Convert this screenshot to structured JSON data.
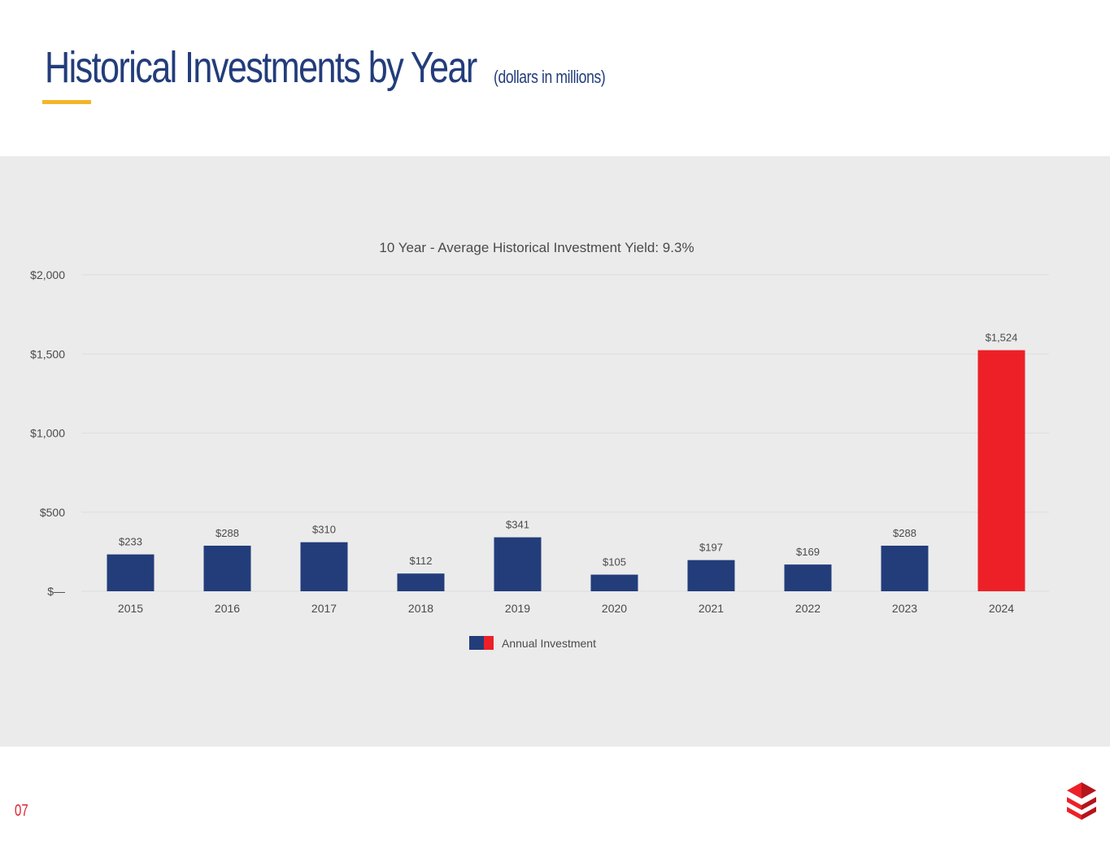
{
  "page": {
    "title": "Historical Investments by Year",
    "subtitle": "(dollars in millions)",
    "page_number": "07",
    "logo_icon": "stacked-chevron-logo-icon"
  },
  "colors": {
    "primary": "#233d7b",
    "highlight": "#ed2027",
    "accent": "#f4b52b",
    "panel": "#ebebeb",
    "text": "#4a4a4a"
  },
  "chart_data": {
    "type": "bar",
    "title": "10 Year - Average Historical Investment Yield: 9.3%",
    "categories": [
      "2015",
      "2016",
      "2017",
      "2018",
      "2019",
      "2020",
      "2021",
      "2022",
      "2023",
      "2024"
    ],
    "values": [
      233,
      288,
      310,
      112,
      341,
      105,
      197,
      169,
      288,
      1524
    ],
    "data_labels": [
      "$233",
      "$288",
      "$310",
      "$112",
      "$341",
      "$105",
      "$197",
      "$169",
      "$288",
      "$1,524"
    ],
    "highlight_index": 9,
    "ylim": [
      0,
      2000
    ],
    "yticks": [
      0,
      500,
      1000,
      1500,
      2000
    ],
    "ytick_labels": [
      "$—",
      "$500",
      "$1,000",
      "$1,500",
      "$2,000"
    ],
    "xlabel": "",
    "ylabel": "",
    "grid": true,
    "legend": {
      "position": "bottom-center",
      "entries": [
        "Annual Investment"
      ]
    }
  }
}
